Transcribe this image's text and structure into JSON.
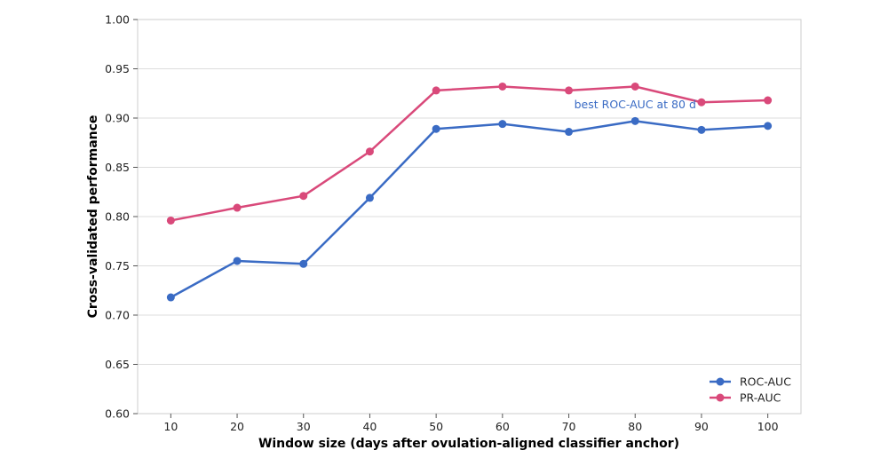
{
  "chart_data": {
    "type": "line",
    "xlabel": "Window size (days after ovulation-aligned classifier anchor)",
    "ylabel": "Cross-validated performance",
    "x": [
      10,
      20,
      30,
      40,
      50,
      60,
      70,
      80,
      90,
      100
    ],
    "xticks": [
      "10",
      "20",
      "30",
      "40",
      "50",
      "60",
      "70",
      "80",
      "90",
      "100"
    ],
    "yticks": [
      "0.60",
      "0.65",
      "0.70",
      "0.75",
      "0.80",
      "0.85",
      "0.90",
      "0.95",
      "1.00"
    ],
    "xlim": [
      5,
      105
    ],
    "ylim": [
      0.6,
      1.0
    ],
    "grid": "horizontal",
    "legend_position": "bottom-right",
    "series": [
      {
        "name": "ROC-AUC",
        "color": "#3a6bc4",
        "values": [
          0.718,
          0.755,
          0.752,
          0.819,
          0.889,
          0.894,
          0.886,
          0.897,
          0.888,
          0.892
        ]
      },
      {
        "name": "PR-AUC",
        "color": "#d9497a",
        "values": [
          0.796,
          0.809,
          0.821,
          0.866,
          0.928,
          0.932,
          0.928,
          0.932,
          0.916,
          0.918
        ]
      }
    ],
    "annotation": {
      "text": "best ROC-AUC at 80 d",
      "color": "#3a6bc4",
      "x": 80,
      "y": 0.914
    }
  }
}
